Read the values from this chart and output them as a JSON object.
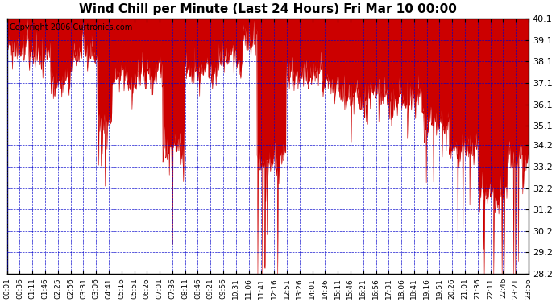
{
  "title": "Wind Chill per Minute (Last 24 Hours) Fri Mar 10 00:00",
  "copyright": "Copyright 2006 Curtronics.com",
  "line_color": "#cc0000",
  "bg_color": "#ffffff",
  "grid_color": "#0000cc",
  "yticks": [
    28.2,
    29.2,
    30.2,
    31.2,
    32.2,
    33.2,
    34.2,
    35.1,
    36.1,
    37.1,
    38.1,
    39.1,
    40.1
  ],
  "ymin": 28.2,
  "ymax": 40.1,
  "xtick_labels": [
    "00:01",
    "00:36",
    "01:11",
    "01:46",
    "02:25",
    "02:56",
    "03:31",
    "03:06",
    "04:41",
    "05:16",
    "05:51",
    "06:26",
    "07:01",
    "07:36",
    "08:11",
    "08:46",
    "09:21",
    "09:56",
    "10:31",
    "11:06",
    "11:41",
    "12:16",
    "12:51",
    "13:26",
    "14:01",
    "14:36",
    "15:11",
    "15:46",
    "16:21",
    "16:56",
    "17:31",
    "18:06",
    "18:41",
    "19:16",
    "19:51",
    "20:26",
    "21:01",
    "21:36",
    "22:11",
    "22:46",
    "23:21",
    "23:56"
  ],
  "seed": 42
}
